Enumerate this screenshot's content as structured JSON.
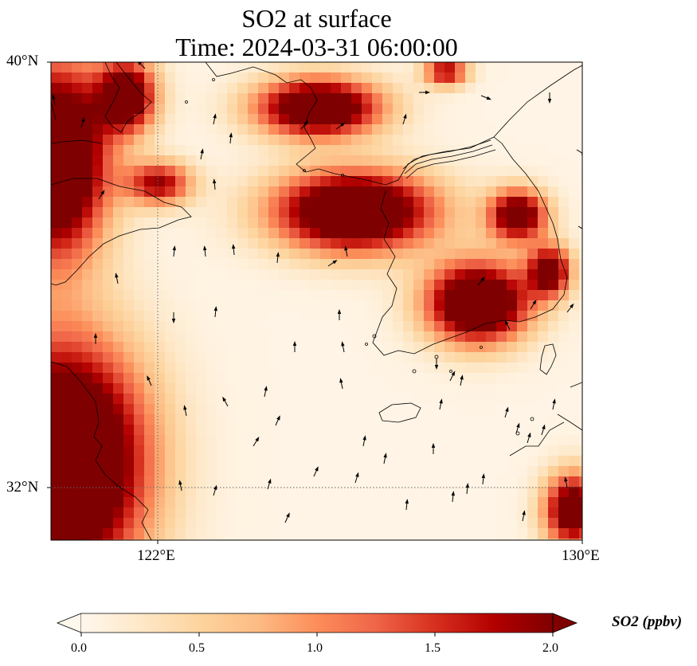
{
  "title": {
    "line1": "SO2 at surface",
    "line2": "Time: 2024-03-31 06:00:00"
  },
  "map": {
    "lat_ticks": [
      {
        "value": 40,
        "label": "40°N"
      },
      {
        "value": 32,
        "label": "32°N"
      }
    ],
    "lon_ticks": [
      {
        "value": 122,
        "label": "122°E"
      },
      {
        "value": 130,
        "label": "130°E"
      }
    ],
    "gridlines": "dotted",
    "field": "SO2 concentration at surface",
    "overlay": "wind vectors"
  },
  "colorbar": {
    "title": "SO2 (ppbv)",
    "min": 0.0,
    "max": 2.0,
    "ticks": [
      {
        "value": 0.0,
        "label": "0.0"
      },
      {
        "value": 0.5,
        "label": "0.5"
      },
      {
        "value": 1.0,
        "label": "1.0"
      },
      {
        "value": 1.5,
        "label": "1.5"
      },
      {
        "value": 2.0,
        "label": "2.0"
      }
    ],
    "extend": "both",
    "colormap": [
      "#fff7ec",
      "#fee8c8",
      "#fdd49e",
      "#fdbb84",
      "#fc8d59",
      "#ef6548",
      "#d7301f",
      "#b30000",
      "#7f0000"
    ]
  }
}
